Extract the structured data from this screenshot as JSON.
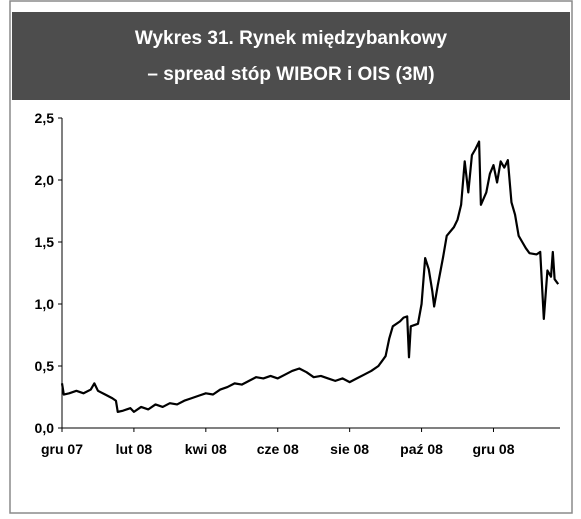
{
  "chart_data": {
    "type": "line",
    "title": "Wykres 31. Rynek międzybankowy",
    "subtitle": "– spread stóp WIBOR i OIS (3M)",
    "x": [
      0,
      0.05,
      0.2,
      0.4,
      0.6,
      0.8,
      0.9,
      1.0,
      1.2,
      1.4,
      1.5,
      1.55,
      1.7,
      1.9,
      2.0,
      2.2,
      2.4,
      2.6,
      2.8,
      3.0,
      3.2,
      3.4,
      3.6,
      3.8,
      4.0,
      4.2,
      4.4,
      4.6,
      4.8,
      5.0,
      5.2,
      5.4,
      5.6,
      5.8,
      6.0,
      6.2,
      6.4,
      6.6,
      6.8,
      7.0,
      7.2,
      7.4,
      7.6,
      7.8,
      8.0,
      8.2,
      8.4,
      8.6,
      8.8,
      9.0,
      9.1,
      9.2,
      9.4,
      9.5,
      9.6,
      9.65,
      9.7,
      9.9,
      10.0,
      10.1,
      10.2,
      10.3,
      10.35,
      10.45,
      10.6,
      10.7,
      10.9,
      11.0,
      11.1,
      11.2,
      11.3,
      11.4,
      11.5,
      11.6,
      11.65,
      11.8,
      11.9,
      12.0,
      12.1,
      12.2,
      12.3,
      12.4,
      12.5,
      12.6,
      12.7,
      12.8,
      12.9,
      13.0,
      13.2,
      13.3,
      13.4,
      13.5,
      13.6,
      13.65,
      13.7,
      13.8
    ],
    "series": [
      {
        "name": "spread WIBOR-OIS 3M",
        "color": "#000000",
        "values": [
          0.36,
          0.27,
          0.28,
          0.3,
          0.28,
          0.31,
          0.36,
          0.3,
          0.27,
          0.24,
          0.22,
          0.13,
          0.14,
          0.16,
          0.13,
          0.17,
          0.15,
          0.19,
          0.17,
          0.2,
          0.19,
          0.22,
          0.24,
          0.26,
          0.28,
          0.27,
          0.31,
          0.33,
          0.36,
          0.35,
          0.38,
          0.41,
          0.4,
          0.42,
          0.4,
          0.43,
          0.46,
          0.48,
          0.45,
          0.41,
          0.42,
          0.4,
          0.38,
          0.4,
          0.37,
          0.4,
          0.43,
          0.46,
          0.5,
          0.58,
          0.72,
          0.82,
          0.86,
          0.89,
          0.9,
          0.57,
          0.82,
          0.84,
          1.0,
          1.37,
          1.28,
          1.1,
          0.98,
          1.15,
          1.38,
          1.55,
          1.62,
          1.68,
          1.8,
          2.15,
          1.9,
          2.2,
          2.25,
          2.31,
          1.8,
          1.9,
          2.05,
          2.12,
          1.98,
          2.15,
          2.1,
          2.16,
          1.82,
          1.72,
          1.55,
          1.5,
          1.45,
          1.41,
          1.4,
          1.42,
          0.88,
          1.27,
          1.22,
          1.42,
          1.2,
          1.16
        ]
      }
    ],
    "xlim": [
      0,
      13.85
    ],
    "xticks": [
      {
        "value": 0,
        "label": "gru 07"
      },
      {
        "value": 2,
        "label": "lut 08"
      },
      {
        "value": 4,
        "label": "kwi 08"
      },
      {
        "value": 6,
        "label": "cze 08"
      },
      {
        "value": 8,
        "label": "sie 08"
      },
      {
        "value": 10,
        "label": "paź 08"
      },
      {
        "value": 12,
        "label": "gru 08"
      }
    ],
    "ylim": [
      0,
      2.5
    ],
    "yticks": [
      {
        "value": 0,
        "label": "0,0"
      },
      {
        "value": 0.5,
        "label": "0,5"
      },
      {
        "value": 1,
        "label": "1,0"
      },
      {
        "value": 1.5,
        "label": "1,5"
      },
      {
        "value": 2,
        "label": "2,0"
      },
      {
        "value": 2.5,
        "label": "2,5"
      }
    ],
    "grid": false
  }
}
